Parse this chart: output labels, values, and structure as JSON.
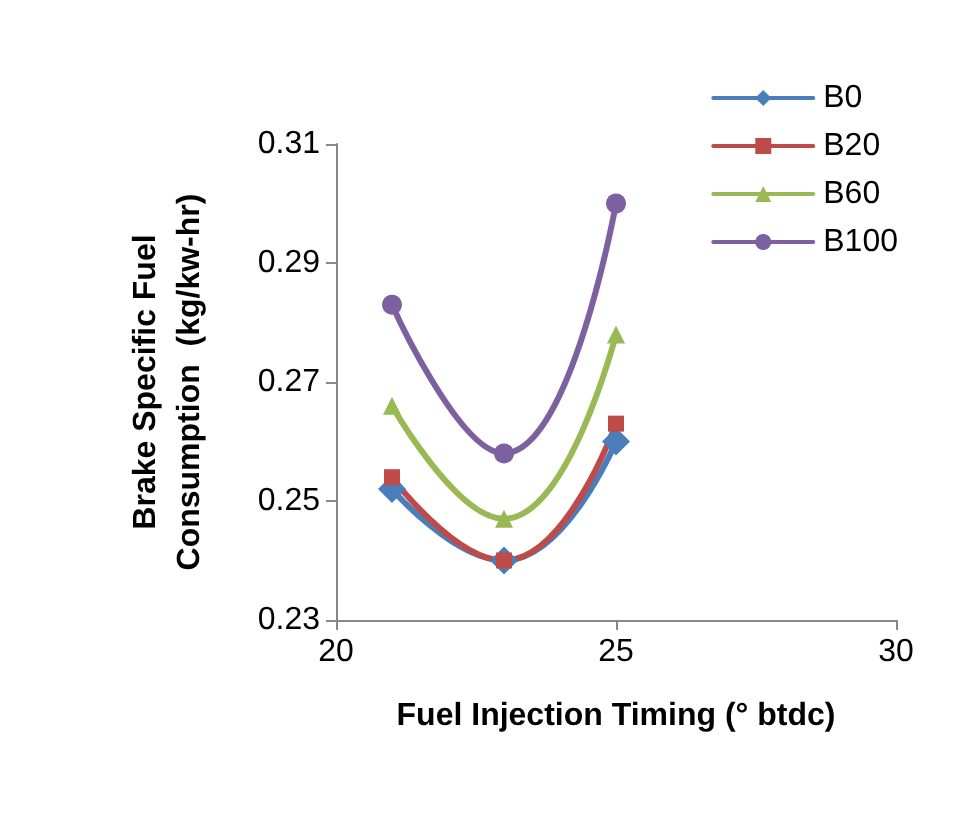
{
  "chart_data": {
    "type": "line",
    "xlabel": "Fuel Injection Timing (° btdc)",
    "ylabel": "Brake Specific Fuel\nConsumption  (kg/kw-hr)",
    "x": [
      21,
      23,
      25
    ],
    "xlim": [
      20,
      30
    ],
    "xticks": [
      20,
      25,
      30
    ],
    "ylim": [
      0.23,
      0.31
    ],
    "yticks": [
      0.23,
      0.25,
      0.27,
      0.29,
      0.31
    ],
    "grid": false,
    "legend": "top right",
    "series": [
      {
        "name": "B0",
        "color": "#4a7ebb",
        "marker": "diamond",
        "values": [
          0.252,
          0.24,
          0.26
        ]
      },
      {
        "name": "B20",
        "color": "#be4b48",
        "marker": "square",
        "values": [
          0.254,
          0.24,
          0.263
        ]
      },
      {
        "name": "B60",
        "color": "#98b954",
        "marker": "triangle",
        "values": [
          0.266,
          0.247,
          0.278
        ]
      },
      {
        "name": "B100",
        "color": "#7d60a0",
        "marker": "circle",
        "values": [
          0.283,
          0.258,
          0.3
        ]
      }
    ]
  }
}
